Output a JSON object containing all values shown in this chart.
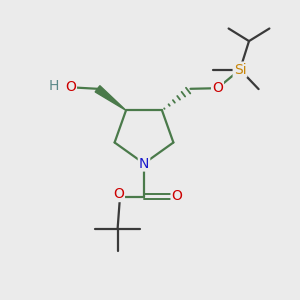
{
  "bg_color": "#EBEBEB",
  "bond_color": "#4a7a4a",
  "n_color": "#1a1aCC",
  "o_color": "#CC0000",
  "si_color": "#C8860A",
  "h_color": "#5a8888",
  "c_color": "#3a3a3a",
  "figsize": [
    3.0,
    3.0
  ],
  "dpi": 100,
  "xlim": [
    0,
    10
  ],
  "ylim": [
    0,
    10
  ]
}
